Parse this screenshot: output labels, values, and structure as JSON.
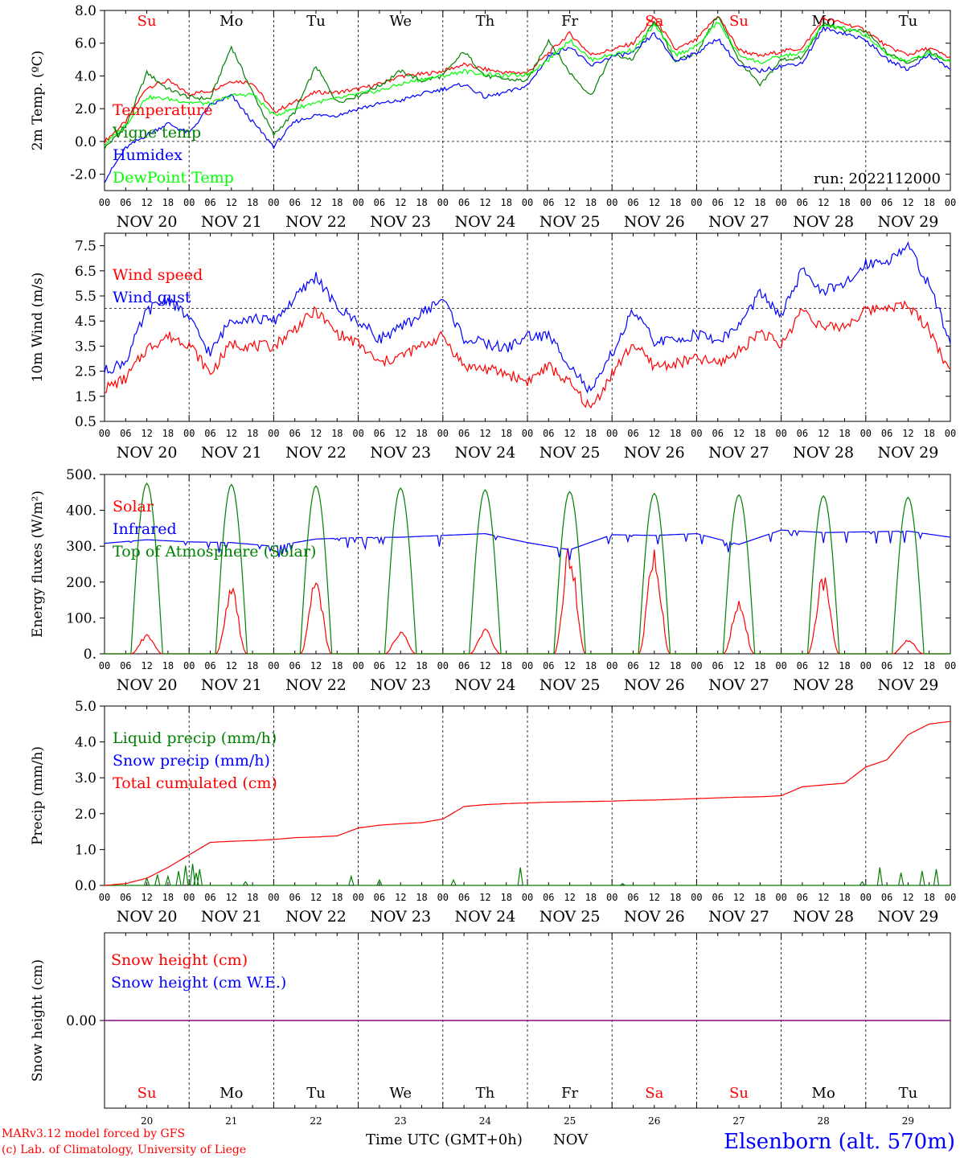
{
  "colors": {
    "red": "#ff0000",
    "green": "#008000",
    "blue": "#0000ff",
    "lightgreen": "#00ff00",
    "purple": "#800080",
    "grid": "#000000"
  },
  "dates": [
    "NOV 20",
    "NOV 21",
    "NOV 22",
    "NOV 23",
    "NOV 24",
    "NOV 25",
    "NOV 26",
    "NOV 27",
    "NOV 28",
    "NOV 29"
  ],
  "days": [
    "Su",
    "Mo",
    "Tu",
    "We",
    "Th",
    "Fr",
    "Sa",
    "Su",
    "Mo",
    "Tu"
  ],
  "day_colors": [
    "red",
    "black",
    "black",
    "black",
    "black",
    "black",
    "red",
    "red",
    "black",
    "black"
  ],
  "day_numbers": [
    "20",
    "21",
    "22",
    "23",
    "24",
    "25",
    "26",
    "27",
    "28",
    "29"
  ],
  "hour_ticks": [
    "00",
    "06",
    "12",
    "18"
  ],
  "footer": {
    "credit_line1": "MARv3.12 model forced by GFS",
    "credit_line2": "(c) Lab. of Climatology, University of Liege",
    "time_label": "Time UTC (GMT+0h)",
    "month_label": "NOV",
    "station": "Elsenborn (alt. 570m)"
  },
  "chart_data": [
    {
      "type": "line",
      "ylabel": "2m Temp. (ºC)",
      "ylim": [
        -3,
        8
      ],
      "yticks": [
        "8.0",
        "6.0",
        "4.0",
        "2.0",
        "0.0",
        "-2.0"
      ],
      "ytick_values": [
        8,
        6,
        4,
        2,
        0,
        -2
      ],
      "reference_line": 0,
      "annotation": "run: 2022112000",
      "x_hours_since_nov20_00": [
        0,
        6,
        12,
        18,
        24,
        30,
        36,
        42,
        48,
        54,
        60,
        66,
        72,
        78,
        84,
        90,
        96,
        102,
        108,
        114,
        120,
        126,
        132,
        138,
        144,
        150,
        156,
        162,
        168,
        174,
        180,
        186,
        192,
        198,
        204,
        210,
        216,
        222,
        228,
        234,
        240
      ],
      "series": [
        {
          "name": "Temperature",
          "color": "red",
          "values": [
            0.0,
            1.2,
            3.3,
            3.7,
            2.9,
            3.1,
            3.7,
            3.6,
            1.8,
            2.4,
            3.0,
            3.0,
            3.2,
            3.5,
            4.0,
            4.1,
            4.3,
            4.7,
            4.4,
            4.2,
            4.2,
            5.4,
            6.6,
            5.3,
            5.6,
            6.0,
            7.6,
            5.6,
            6.2,
            7.7,
            5.6,
            5.2,
            5.5,
            5.7,
            7.5,
            7.2,
            6.8,
            5.8,
            5.3,
            5.7,
            5.1
          ]
        },
        {
          "name": "Vigne temp",
          "color": "green",
          "values": [
            -0.4,
            0.9,
            4.2,
            3.2,
            2.7,
            2.6,
            5.8,
            3.0,
            0.4,
            1.8,
            4.6,
            2.4,
            2.8,
            3.4,
            4.3,
            3.7,
            4.0,
            5.5,
            4.0,
            3.8,
            3.7,
            6.2,
            4.2,
            2.8,
            5.3,
            5.0,
            7.4,
            4.9,
            5.4,
            7.7,
            5.0,
            3.4,
            5.0,
            5.1,
            7.2,
            6.8,
            6.7,
            5.4,
            4.8,
            5.5,
            4.8
          ]
        },
        {
          "name": "Humidex",
          "color": "blue",
          "values": [
            -2.4,
            -0.4,
            0.4,
            1.1,
            0.5,
            2.2,
            2.8,
            1.2,
            -0.3,
            1.2,
            1.6,
            1.6,
            2.0,
            2.3,
            2.5,
            2.9,
            3.2,
            3.5,
            2.7,
            3.0,
            3.4,
            5.2,
            5.8,
            4.6,
            5.2,
            5.4,
            6.6,
            4.9,
            5.4,
            6.3,
            4.6,
            4.3,
            4.6,
            4.8,
            6.9,
            6.6,
            6.2,
            5.0,
            4.4,
            5.3,
            4.4
          ]
        },
        {
          "name": "DewPoint Temp",
          "color": "lightgreen",
          "values": [
            -0.2,
            1.0,
            2.7,
            2.6,
            2.4,
            2.3,
            2.8,
            2.9,
            1.6,
            2.0,
            2.4,
            2.6,
            2.9,
            3.1,
            3.5,
            3.8,
            4.0,
            4.3,
            4.1,
            4.0,
            4.1,
            5.0,
            6.2,
            5.0,
            5.3,
            5.6,
            7.1,
            5.3,
            5.8,
            7.3,
            5.3,
            4.8,
            5.2,
            5.4,
            7.1,
            6.9,
            6.5,
            5.3,
            4.9,
            5.4,
            4.9
          ]
        }
      ]
    },
    {
      "type": "line",
      "ylabel": "10m Wind (m/s)",
      "ylim": [
        0.5,
        8
      ],
      "yticks": [
        "7.5",
        "6.5",
        "5.5",
        "4.5",
        "3.5",
        "2.5",
        "1.5",
        "0.5"
      ],
      "ytick_values": [
        7.5,
        6.5,
        5.5,
        4.5,
        3.5,
        2.5,
        1.5,
        0.5
      ],
      "reference_line": 5,
      "x_hours_since_nov20_00": [
        0,
        6,
        12,
        18,
        24,
        30,
        36,
        42,
        48,
        54,
        60,
        66,
        72,
        78,
        84,
        90,
        96,
        102,
        108,
        114,
        120,
        126,
        132,
        138,
        144,
        150,
        156,
        162,
        168,
        174,
        180,
        186,
        192,
        198,
        204,
        210,
        216,
        222,
        228,
        234,
        240
      ],
      "series": [
        {
          "name": "Wind speed",
          "color": "red",
          "values": [
            1.8,
            2.2,
            3.4,
            3.9,
            3.6,
            2.4,
            3.6,
            3.5,
            3.5,
            4.2,
            4.9,
            4.0,
            3.6,
            2.8,
            3.1,
            3.5,
            3.9,
            2.7,
            2.6,
            2.4,
            2.1,
            2.7,
            2.0,
            1.0,
            2.4,
            3.6,
            2.7,
            2.8,
            3.0,
            2.8,
            3.3,
            4.1,
            3.5,
            5.0,
            4.2,
            4.3,
            4.9,
            5.1,
            5.1,
            4.2,
            2.4
          ]
        },
        {
          "name": "Wind gust",
          "color": "blue",
          "values": [
            2.5,
            2.9,
            4.9,
            5.4,
            4.6,
            3.2,
            4.6,
            4.6,
            4.5,
            5.4,
            6.3,
            5.0,
            4.5,
            3.8,
            4.2,
            4.8,
            5.4,
            3.8,
            3.6,
            3.4,
            3.9,
            3.9,
            2.8,
            1.6,
            3.2,
            4.9,
            3.7,
            3.7,
            4.0,
            3.7,
            4.3,
            5.6,
            4.7,
            6.5,
            5.7,
            5.9,
            6.8,
            6.9,
            7.5,
            5.9,
            3.7
          ]
        }
      ]
    },
    {
      "type": "line",
      "ylabel": "Energy fluxes (W/m²)",
      "ylim": [
        0,
        500
      ],
      "yticks": [
        "500.",
        "400.",
        "300.",
        "200.",
        "100.",
        "0."
      ],
      "ytick_values": [
        500,
        400,
        300,
        200,
        100,
        0
      ],
      "series": [
        {
          "name": "Solar",
          "color": "red",
          "daily_peaks": [
            50,
            165,
            185,
            55,
            60,
            275,
            265,
            130,
            205,
            35
          ]
        },
        {
          "name": "Infrared",
          "color": "blue",
          "values_x_hours": [
            0,
            12,
            24,
            36,
            48,
            60,
            72,
            84,
            96,
            108,
            120,
            132,
            144,
            156,
            168,
            180,
            192,
            204,
            216,
            228,
            240
          ],
          "values": [
            308,
            318,
            312,
            310,
            300,
            320,
            324,
            325,
            330,
            335,
            310,
            290,
            332,
            330,
            335,
            305,
            345,
            338,
            340,
            342,
            325
          ]
        },
        {
          "name": "Top of Atmosphere (Solar)",
          "color": "green",
          "daily_peaks": [
            475,
            472,
            468,
            462,
            457,
            452,
            447,
            443,
            440,
            436
          ]
        }
      ]
    },
    {
      "type": "line",
      "ylabel": "Precip (mm/h)",
      "ylim": [
        0,
        5
      ],
      "yticks": [
        "5.0",
        "4.0",
        "3.0",
        "2.0",
        "1.0",
        "0.0"
      ],
      "ytick_values": [
        5,
        4,
        3,
        2,
        1,
        0
      ],
      "series": [
        {
          "name": "Liquid precip (mm/h)",
          "color": "green",
          "spikes_x_hours": [
            12,
            15,
            18,
            21,
            23,
            25,
            26,
            27,
            40,
            70,
            78,
            99,
            118,
            147,
            215,
            220,
            226,
            232,
            236
          ],
          "spikes": [
            0.2,
            0.3,
            0.25,
            0.4,
            0.55,
            0.6,
            0.35,
            0.45,
            0.1,
            0.25,
            0.15,
            0.15,
            0.5,
            0.05,
            0.1,
            0.5,
            0.35,
            0.4,
            0.45
          ]
        },
        {
          "name": "Snow precip (mm/h)",
          "color": "blue",
          "values": []
        },
        {
          "name": "Total cumulated (cm)",
          "color": "red",
          "values_x_hours": [
            0,
            6,
            12,
            18,
            24,
            30,
            36,
            42,
            48,
            54,
            60,
            66,
            72,
            78,
            84,
            90,
            96,
            102,
            108,
            114,
            120,
            126,
            132,
            138,
            144,
            150,
            156,
            162,
            168,
            174,
            180,
            186,
            192,
            198,
            204,
            210,
            216,
            222,
            228,
            234,
            240
          ],
          "values": [
            0.0,
            0.05,
            0.2,
            0.5,
            0.85,
            1.2,
            1.23,
            1.25,
            1.28,
            1.33,
            1.35,
            1.38,
            1.6,
            1.68,
            1.72,
            1.75,
            1.85,
            2.2,
            2.25,
            2.28,
            2.3,
            2.32,
            2.33,
            2.34,
            2.35,
            2.37,
            2.38,
            2.4,
            2.42,
            2.44,
            2.46,
            2.47,
            2.5,
            2.75,
            2.8,
            2.85,
            3.3,
            3.5,
            4.2,
            4.5,
            4.57
          ]
        }
      ]
    },
    {
      "type": "line",
      "ylabel": "Snow height (cm)",
      "ylim": [
        -1,
        1
      ],
      "yticks": [
        "0.00"
      ],
      "ytick_values": [
        0
      ],
      "series": [
        {
          "name": "Snow height (cm)",
          "color": "red",
          "values": [
            0,
            0
          ]
        },
        {
          "name": "Snow height (cm W.E.)",
          "color": "blue",
          "values": [
            0,
            0
          ]
        }
      ]
    }
  ]
}
